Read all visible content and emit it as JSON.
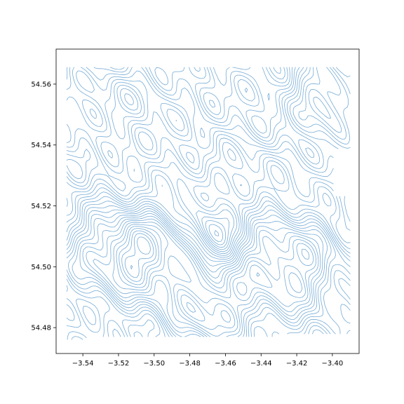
{
  "chart_data": {
    "type": "contour-map",
    "title": "",
    "xlabel": "",
    "ylabel": "",
    "xlim": [
      -3.555,
      -3.385
    ],
    "ylim": [
      54.4715,
      54.5715
    ],
    "xticks": [
      {
        "value": -3.54,
        "label": "−3.54"
      },
      {
        "value": -3.52,
        "label": "−3.52"
      },
      {
        "value": -3.5,
        "label": "−3.50"
      },
      {
        "value": -3.48,
        "label": "−3.48"
      },
      {
        "value": -3.46,
        "label": "−3.46"
      },
      {
        "value": -3.44,
        "label": "−3.44"
      },
      {
        "value": -3.42,
        "label": "−3.42"
      },
      {
        "value": -3.4,
        "label": "−3.40"
      }
    ],
    "yticks": [
      {
        "value": 54.48,
        "label": "54.48"
      },
      {
        "value": 54.5,
        "label": "54.50"
      },
      {
        "value": 54.52,
        "label": "54.52"
      },
      {
        "value": 54.54,
        "label": "54.54"
      },
      {
        "value": 54.56,
        "label": "54.56"
      }
    ],
    "data_extent": {
      "west": -3.549,
      "east": -3.391,
      "south": 54.476,
      "north": 54.5655,
      "notch_south": 54.5235,
      "notch_west": -3.398
    },
    "line_color": "#4a90c8",
    "grid": false,
    "legend": "none"
  }
}
